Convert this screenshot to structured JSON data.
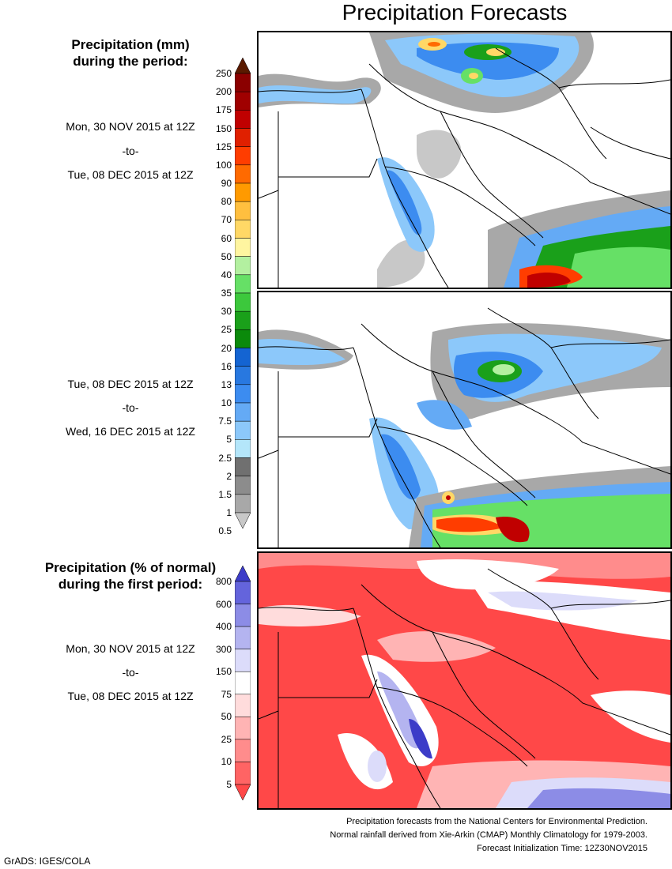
{
  "title": "Precipitation Forecasts",
  "legend_amount": {
    "title_line1": "Precipitation (mm)",
    "title_line2": "during the period:",
    "levels": [
      "250",
      "200",
      "175",
      "150",
      "125",
      "100",
      "90",
      "80",
      "70",
      "60",
      "50",
      "40",
      "35",
      "30",
      "25",
      "20",
      "16",
      "13",
      "10",
      "7.5",
      "5",
      "2.5",
      "2",
      "1.5",
      "1",
      "0.5"
    ],
    "colors": [
      "#5a1a00",
      "#8b0000",
      "#a00000",
      "#c00000",
      "#e02000",
      "#ff3d00",
      "#ff6a00",
      "#ff9a00",
      "#ffbf3f",
      "#ffd866",
      "#fff5a0",
      "#b3f0a0",
      "#66e066",
      "#3cc83c",
      "#1aa01a",
      "#0b8a0b",
      "#1464d2",
      "#2878e0",
      "#3c8cf0",
      "#64aaf5",
      "#8cc8fa",
      "#b4e6fa",
      "#707070",
      "#8c8c8c",
      "#a8a8a8",
      "#c8c8c8"
    ]
  },
  "period1": {
    "start": "Mon, 30 NOV 2015 at 12Z",
    "sep": "-to-",
    "end": "Tue, 08 DEC 2015 at 12Z"
  },
  "period2": {
    "start": "Tue, 08 DEC 2015 at 12Z",
    "sep": "-to-",
    "end": "Wed, 16 DEC 2015 at 12Z"
  },
  "legend_percent": {
    "title_line1": "Precipitation (% of normal)",
    "title_line2": "during the first period:",
    "levels": [
      "800",
      "600",
      "400",
      "300",
      "150",
      "75",
      "50",
      "25",
      "10",
      "5"
    ],
    "colors": [
      "#3c3cc8",
      "#6464dc",
      "#8c8ce6",
      "#b4b4f0",
      "#dcdcfa",
      "#ffffff",
      "#ffdcdc",
      "#ffb4b4",
      "#ff8c8c",
      "#ff6464",
      "#ff4848"
    ]
  },
  "period3": {
    "start": "Mon, 30 NOV 2015 at 12Z",
    "sep": "-to-",
    "end": "Tue, 08 DEC 2015 at 12Z"
  },
  "footer": {
    "line1": "Precipitation forecasts from the National Centers for Environmental Prediction.",
    "line2": "Normal rainfall derived from Xie-Arkin (CMAP) Monthly Climatology for 1979-2003.",
    "line3": "Forecast Initialization Time: 12Z30NOV2015"
  },
  "grads_credit": "GrADS: IGES/COLA"
}
